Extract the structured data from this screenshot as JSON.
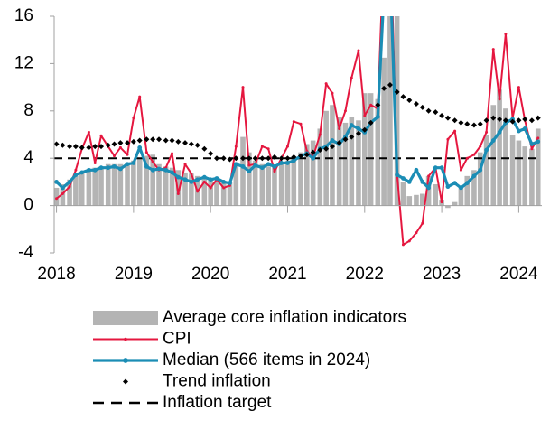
{
  "chart_data": {
    "type": "combo",
    "x": [
      2018.0,
      2018.08,
      2018.17,
      2018.25,
      2018.33,
      2018.42,
      2018.5,
      2018.58,
      2018.67,
      2018.75,
      2018.83,
      2018.92,
      2019.0,
      2019.08,
      2019.17,
      2019.25,
      2019.33,
      2019.42,
      2019.5,
      2019.58,
      2019.67,
      2019.75,
      2019.83,
      2019.92,
      2020.0,
      2020.08,
      2020.17,
      2020.25,
      2020.33,
      2020.42,
      2020.5,
      2020.58,
      2020.67,
      2020.75,
      2020.83,
      2020.92,
      2021.0,
      2021.08,
      2021.17,
      2021.25,
      2021.33,
      2021.42,
      2021.5,
      2021.58,
      2021.67,
      2021.75,
      2021.83,
      2021.92,
      2022.0,
      2022.08,
      2022.17,
      2022.25,
      2022.33,
      2022.42,
      2022.5,
      2022.58,
      2022.67,
      2022.75,
      2022.83,
      2022.92,
      2023.0,
      2023.08,
      2023.17,
      2023.25,
      2023.33,
      2023.42,
      2023.5,
      2023.58,
      2023.67,
      2023.75,
      2023.83,
      2023.92,
      2024.0,
      2024.08,
      2024.17,
      2024.25
    ],
    "series": [
      {
        "name": "Average core inflation indicators",
        "type": "bar",
        "color": "#b4b4b4",
        "values": [
          1.5,
          1.8,
          2.2,
          2.5,
          2.8,
          3.0,
          3.2,
          3.3,
          3.5,
          3.5,
          3.5,
          3.6,
          3.8,
          4.0,
          4.2,
          4.3,
          3.5,
          3.3,
          3.2,
          3.0,
          2.8,
          2.7,
          2.5,
          2.3,
          2.2,
          2.0,
          2.1,
          2.0,
          3.5,
          5.8,
          4.5,
          3.8,
          3.5,
          3.3,
          3.4,
          3.5,
          3.8,
          4.0,
          4.5,
          5.2,
          5.5,
          6.5,
          8.0,
          8.5,
          7.5,
          7.0,
          7.5,
          7.2,
          9.5,
          9.5,
          9.0,
          12.5,
          16.5,
          16.5,
          2.0,
          0.8,
          0.9,
          1.0,
          2.5,
          1.8,
          0.5,
          -0.2,
          0.3,
          1.5,
          2.5,
          3.0,
          4.5,
          6.0,
          8.5,
          9.8,
          8.2,
          6.0,
          5.5,
          5.0,
          4.8,
          6.5
        ]
      },
      {
        "name": "CPI",
        "type": "line",
        "color": "#e5173f",
        "width": 2,
        "values": [
          0.6,
          1.0,
          1.6,
          3.0,
          4.8,
          6.2,
          3.6,
          5.9,
          5.0,
          4.2,
          4.9,
          4.3,
          7.4,
          9.2,
          4.5,
          3.7,
          3.0,
          3.2,
          4.4,
          1.0,
          3.5,
          2.7,
          1.2,
          2.0,
          1.5,
          2.2,
          1.5,
          1.7,
          5.0,
          10.0,
          3.4,
          3.5,
          5.0,
          4.8,
          2.9,
          4.0,
          5.0,
          7.1,
          6.9,
          4.6,
          4.1,
          6.0,
          10.3,
          9.5,
          6.5,
          8.0,
          10.8,
          13.1,
          7.6,
          8.5,
          8.2,
          22.0,
          24.0,
          2.7,
          -3.3,
          -3.0,
          -2.3,
          -1.5,
          2.5,
          3.2,
          0.3,
          5.6,
          6.3,
          3.0,
          4.0,
          4.3,
          5.0,
          6.2,
          13.2,
          9.0,
          14.5,
          7.4,
          10.0,
          7.2,
          4.8,
          5.7
        ]
      },
      {
        "name": "Median (566 items in 2024)",
        "type": "line",
        "color": "#1b8db5",
        "width": 3.2,
        "values": [
          2.0,
          1.5,
          2.0,
          2.6,
          2.8,
          3.0,
          3.0,
          3.2,
          3.2,
          3.3,
          3.1,
          3.5,
          3.6,
          4.9,
          3.3,
          3.0,
          3.1,
          3.0,
          2.8,
          2.4,
          2.2,
          2.0,
          2.2,
          2.4,
          2.2,
          2.3,
          2.0,
          1.9,
          3.5,
          3.3,
          2.9,
          3.4,
          3.2,
          3.5,
          3.3,
          3.6,
          3.6,
          3.8,
          4.2,
          4.4,
          4.0,
          4.8,
          5.0,
          5.5,
          5.2,
          5.8,
          6.8,
          6.5,
          6.2,
          7.0,
          7.5,
          18.0,
          20.0,
          2.6,
          2.3,
          2.0,
          3.0,
          2.0,
          1.5,
          3.2,
          3.2,
          1.6,
          1.9,
          1.5,
          1.9,
          2.5,
          3.0,
          4.7,
          5.5,
          6.2,
          7.0,
          7.3,
          6.3,
          6.5,
          5.2,
          5.4
        ]
      },
      {
        "name": "Trend inflation",
        "type": "marker",
        "color": "#000000",
        "values": [
          5.2,
          5.1,
          5.0,
          5.0,
          4.9,
          4.9,
          5.0,
          5.0,
          5.1,
          5.2,
          5.3,
          5.3,
          5.4,
          5.5,
          5.6,
          5.6,
          5.6,
          5.5,
          5.5,
          5.4,
          5.3,
          5.2,
          5.1,
          4.8,
          4.4,
          4.0,
          4.0,
          3.9,
          4.0,
          4.0,
          4.0,
          4.0,
          4.0,
          4.0,
          4.1,
          4.0,
          4.0,
          4.1,
          4.2,
          4.3,
          4.5,
          4.7,
          4.8,
          5.0,
          5.3,
          5.6,
          5.8,
          6.1,
          6.4,
          7.0,
          8.5,
          9.9,
          10.2,
          9.6,
          9.2,
          8.9,
          8.6,
          8.3,
          8.0,
          7.9,
          7.6,
          7.4,
          7.2,
          7.0,
          6.9,
          6.8,
          6.9,
          7.2,
          7.4,
          7.3,
          7.2,
          7.1,
          7.2,
          7.3,
          7.2,
          7.4
        ]
      },
      {
        "name": "Inflation target",
        "type": "hline",
        "color": "#000000",
        "value": 4
      }
    ],
    "xlim": [
      2017.97,
      2024.3
    ],
    "xticks": [
      2018,
      2019,
      2020,
      2021,
      2022,
      2023,
      2024
    ],
    "ylim": [
      -4,
      16
    ],
    "yticks": [
      -4,
      0,
      4,
      8,
      12,
      16
    ],
    "grid": false,
    "legend": "bottom"
  }
}
